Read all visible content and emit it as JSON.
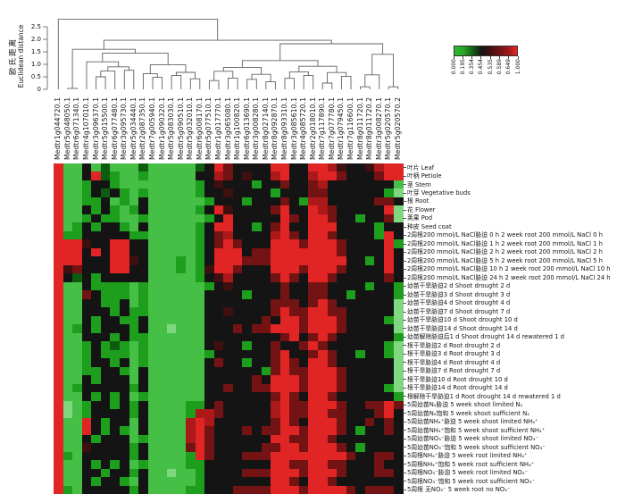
{
  "chart_data": {
    "type": "heatmap",
    "title": "",
    "legend_position": "top-right",
    "dendrogram": {
      "axis_label_zh": "欧氏距离",
      "axis_label_en": "Euclidean distance",
      "axis_ticks": [
        "0",
        "0.5",
        "1.0",
        "1.5",
        "2.0",
        "2.5"
      ],
      "axis_range": [
        0,
        2.8
      ],
      "merges": [
        [
          1,
          2,
          0.04
        ],
        [
          4,
          5,
          0.5
        ],
        [
          "m1",
          6,
          0.73
        ],
        [
          7,
          8,
          0.76
        ],
        [
          "m2",
          "m3",
          0.9
        ],
        [
          3,
          "m4",
          1.1
        ],
        [
          10,
          11,
          0.48
        ],
        [
          9,
          "m6",
          0.62
        ],
        [
          12,
          13,
          0.55
        ],
        [
          14,
          15,
          0.42
        ],
        [
          "m8",
          "m9",
          0.68
        ],
        [
          "m7",
          "m10",
          0.98
        ],
        [
          "m5",
          "m11",
          1.45
        ],
        [
          "m0",
          "m12",
          1.6
        ],
        [
          16,
          17,
          0.35
        ],
        [
          18,
          19,
          0.45
        ],
        [
          "m14",
          "m15",
          0.72
        ],
        [
          20,
          21,
          0.4
        ],
        [
          22,
          23,
          0.3
        ],
        [
          "m17",
          "m18",
          0.6
        ],
        [
          "m16",
          "m19",
          0.88
        ],
        [
          24,
          25,
          0.44
        ],
        [
          26,
          27,
          0.55
        ],
        [
          "m21",
          "m22",
          0.7
        ],
        [
          28,
          29,
          0.25
        ],
        [
          30,
          31,
          0.52
        ],
        [
          "m24",
          "m25",
          0.67
        ],
        [
          "m23",
          "m26",
          0.92
        ],
        [
          "m20",
          "m27",
          1.15
        ],
        [
          32,
          33,
          0.1
        ],
        [
          "m29",
          34,
          0.58
        ],
        [
          35,
          36,
          0.1
        ],
        [
          "m30",
          "m31",
          1.4
        ],
        [
          "m28",
          "m32",
          1.82
        ],
        [
          "m13",
          "m33",
          1.96
        ],
        [
          0,
          "m34",
          2.8
        ]
      ]
    },
    "value_scale": {
      "ticks": [
        "0.000",
        "0.195",
        "0.354",
        "0.454",
        "0.535",
        "0.589",
        "0.649",
        "1.000"
      ],
      "colors": [
        "#2dbb2d",
        "#28a428",
        "#136113",
        "#141414",
        "#421010",
        "#6e1313",
        "#9e1818",
        "#e62424"
      ]
    },
    "palette": {
      "0": "#7fd87f",
      "1": "#46bf46",
      "2": "#1d9e1d",
      "3": "#0e5c10",
      "4": "#141414",
      "5": "#3f1010",
      "6": "#741313",
      "7": "#ab1919",
      "8": "#e12424"
    },
    "columns": [
      "Medtr1g044720.1",
      "Medtr5g048050.1",
      "Medtr6g071340.1",
      "Medtr4g107010.1",
      "Medtr3g096370.1",
      "Medtr5g015500.1",
      "Medtr6g077480.1",
      "Medtr3g095730.1",
      "Medtr5g034440.1",
      "Medtr2g087350.1",
      "Medtr7g005940.1",
      "Medtr1g090320.1",
      "Medtr5g083030.1",
      "Medtr5g090510.1",
      "Medtr5g032010.1",
      "Medtr6g008170.1",
      "Medtr5g077510.1",
      "Medtr1g017770.1",
      "Medtr3g065080.1",
      "Medtr1g100820.1",
      "Medtr6g013690.1",
      "Medtr3g008280.1",
      "Medtr8g027140.1",
      "Medtr8g092870.1",
      "Medtr8g093310.1",
      "Medtr3g085610.1",
      "Medtr4g085720.1",
      "Medtr2g018010.1",
      "Medtr7g117890.1",
      "Medtr7g077780.1",
      "Medtr1g079450.1",
      "Medtr7g116600.1",
      "Medtr8g011720.1",
      "Medtr8g011720.2",
      "Medtr3g008270.1",
      "Medtr5g020570.1",
      "Medtr5g020570.2"
    ],
    "rows": [
      "叶片 Leaf",
      "叶柄 Petiole",
      "茎 Stem",
      "叶芽 Vegetative buds",
      "根 Root",
      "花 Flower",
      "荚果 Pod",
      "种皮 Seed coat",
      "2周根200 mmol/L NaCl胁迫 0 h 2 week root 200 mmol/L NaCl 0 h",
      "2周根200 mmol/L NaCl胁迫 1 h 2 week root 200 mmol/L NaCl 1 h",
      "2周根200 mmol/L NaCl胁迫 2 h 2 week root 200 mmol/L NaCl 2 h",
      "2周根200 mmol/L NaCl胁迫 5 h 2 week root 200 mmol/L NaCl 5 h",
      "2周根200 mmol/L NaCl胁迫 10 h 2 week root 200 mmol/L NaCl 10 h",
      "2周根200 mmol/L NaCl胁迫 24 h 2 week root 200 mmol/L NaCl 24 h",
      "幼苗干旱胁迫2 d Shoot drought 2 d",
      "幼苗干旱胁迫3 d Shoot drought 3 d",
      "幼苗干旱胁迫4 d Shoot drought 4 d",
      "幼苗干旱胁迫7 d Shoot drought 7 d",
      "幼苗干旱胁迫10 d Shoot drought 10 d",
      "幼苗干旱胁迫14 d Shoot drought 14 d",
      "幼苗解除胁迫后1 d Shoot drought 14 d rewatered 1 d",
      "根干旱胁迫2 d Root drought 2 d",
      "根干旱胁迫3 d Root drought 3 d",
      "根干旱胁迫4 d Root drought 4 d",
      "根干旱胁迫7 d Root drought 7 d",
      "根干旱胁迫10 d Root drought 10 d",
      "根干旱胁迫14 d Root drought 14 d",
      "根解除干旱胁迫1 d Root drought 14 d rewatered 1 d",
      "5周幼苗N₂胁迫 5 week shoot limited N₂",
      "5周幼苗N₂饱和 5 week shoot sufficient N₂",
      "5周幼苗NH₄⁺胁迫 5 week shoot limited NH₄⁺",
      "5周幼苗NH₄⁺饱和 5 week shoot sufficient NH₄⁺",
      "5周幼苗NO₃⁻胁迫 5 week shoot limited NO₃⁻",
      "5周幼苗NO₃⁻饱和 5 week shoot sufficient NO₃⁻",
      "5周根NH₄⁺胁迫 5 week root limited NH₄⁺",
      "5周根NH₄⁺饱和 5 week root sufficient NH₄⁺",
      "5周根NO₃⁻胁迫 5 week root limited NO₃⁻",
      "5周根NO₃⁻饱和 5 week root sufficient NO₃⁻",
      "5周根 无NO₃⁻ 5 week root no NO₃⁻"
    ],
    "matrix": [
      "8114131113111113486444488448875445788",
      "8114832112111114476454478447886444688",
      "8112442111111112454442446446744444441",
      "8112434212111112445444424446644444420",
      "8112241214111111244424446427744444664",
      "8114242124111112485444468448764444480",
      "8112422112111111248444448648864424460",
      "8124244214111112488442468448884444244",
      "8224444422111112467444478648864444284",
      "8885448844111112468644488868886444482",
      "8884848844111112488846688888886444484",
      "8884448854111212488866688888888442484",
      "8564448844111212588644488868886444484",
      "8434244444111112457444468648864444464",
      "8114222212111111245444446446644442442",
      "8116422212111111444424446446644244442",
      "8114422412111111444444466646864444440",
      "8114442422111111445444468668866444440",
      "8114244224111111444444648868886444420",
      "8124244424110111444646688868886444440",
      "8114442422111111444444446846864444442",
      "8112423212111111454424464468644444420",
      "8112422212111111244444468446864424420",
      "8112442412111111464424468648864444440",
      "8112244214111111444444268668886444440",
      "8114244414111111444446488868886444440",
      "8124444424111111446446688868886444420",
      "8114242412111111444444468648864444442",
      "8012442424111122464444478668886446686",
      "8012444424111127764444478668866444684",
      "8118424414111178744444468648886446464",
      "8118424214111178644464668868886424464",
      "8114244412111178644444488668864444444",
      "8115444424111168644444668868886424444",
      "8214444424111128644466688888888644664",
      "8114242412111122444444488668866444644",
      "8114424424110112444466688868886444664",
      "8114244214111112444444488648864444444",
      "8214444424111122444666688868888646664"
    ]
  }
}
